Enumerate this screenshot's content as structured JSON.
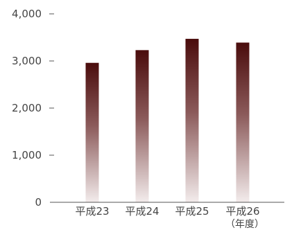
{
  "chart_data": {
    "type": "bar",
    "title": "",
    "xlabel": "",
    "ylabel": "",
    "y_unit": "",
    "x_unit": "（年度）",
    "categories": [
      "平成23",
      "平成24",
      "平成25",
      "平成26"
    ],
    "values": [
      2960,
      3230,
      3470,
      3390
    ],
    "ylim": [
      0,
      4000
    ],
    "yticks": [
      0,
      1000,
      2000,
      3000,
      4000
    ],
    "ytick_labels": [
      "0",
      "1,000",
      "2,000",
      "3,000",
      "4,000"
    ],
    "grid": false,
    "legend": "none",
    "bar_color_top": "#4a0c0c",
    "bar_color_bottom": "#f3ecec",
    "axis_color": "#555555"
  }
}
